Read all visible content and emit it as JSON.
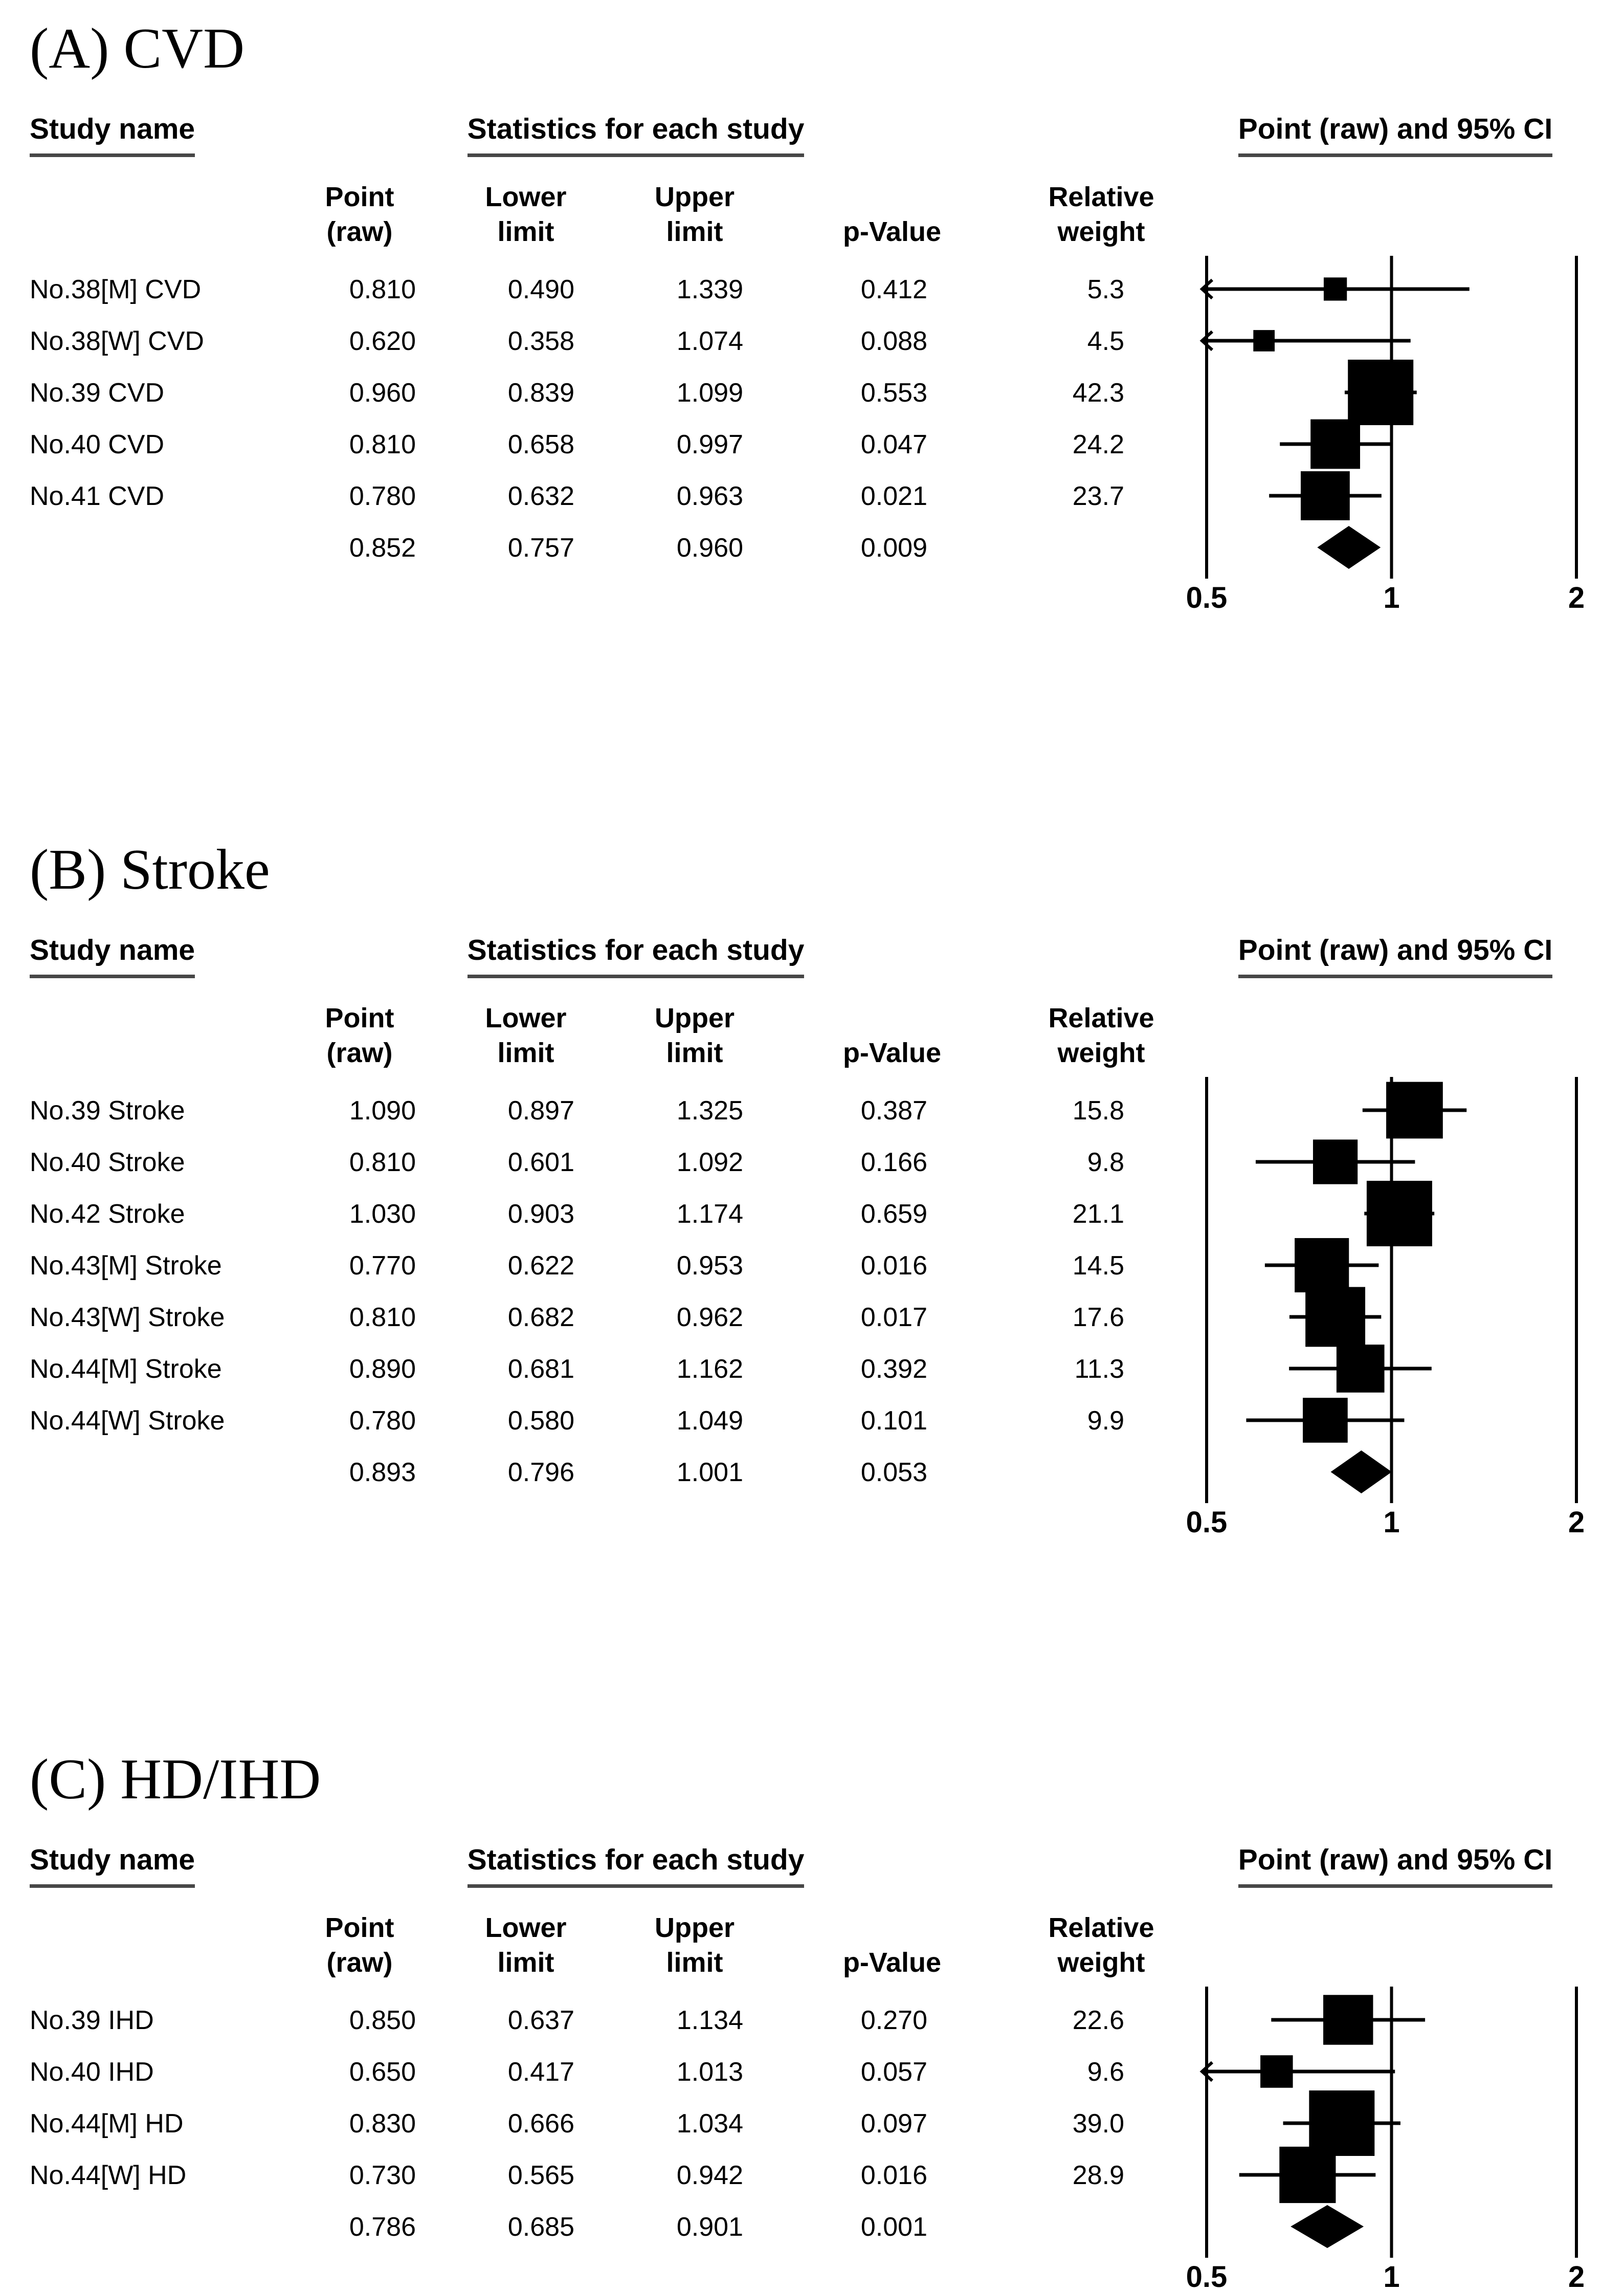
{
  "table_headers": {
    "study": "Study name",
    "statistics": "Statistics for each study",
    "plot": "Point (raw) and 95% CI"
  },
  "columns": {
    "point": [
      "Point",
      "(raw)"
    ],
    "lower": [
      "Lower",
      "limit"
    ],
    "upper": [
      "Upper",
      "limit"
    ],
    "p": [
      "p-Value"
    ],
    "weight": [
      "Relative",
      "weight"
    ]
  },
  "chart_data": [
    {
      "type": "scatter",
      "subtype": "forest-plot",
      "section_label": "(A) CVD",
      "plot_title": "Point (raw) and 95% CI",
      "x_scale": "log",
      "x_range": [
        0.5,
        2
      ],
      "x_ticks": [
        0.5,
        1,
        2
      ],
      "studies": [
        {
          "name": "No.38[M] CVD",
          "point": 0.81,
          "lower": 0.49,
          "upper": 1.339,
          "p_value": 0.412,
          "weight": 5.3
        },
        {
          "name": "No.38[W] CVD",
          "point": 0.62,
          "lower": 0.358,
          "upper": 1.074,
          "p_value": 0.088,
          "weight": 4.5
        },
        {
          "name": "No.39 CVD",
          "point": 0.96,
          "lower": 0.839,
          "upper": 1.099,
          "p_value": 0.553,
          "weight": 42.3
        },
        {
          "name": "No.40 CVD",
          "point": 0.81,
          "lower": 0.658,
          "upper": 0.997,
          "p_value": 0.047,
          "weight": 24.2
        },
        {
          "name": "No.41 CVD",
          "point": 0.78,
          "lower": 0.632,
          "upper": 0.963,
          "p_value": 0.021,
          "weight": 23.7
        }
      ],
      "summary": {
        "point": 0.852,
        "lower": 0.757,
        "upper": 0.96,
        "p_value": 0.009
      }
    },
    {
      "type": "scatter",
      "subtype": "forest-plot",
      "section_label": "(B) Stroke",
      "plot_title": "Point (raw) and 95% CI",
      "x_scale": "log",
      "x_range": [
        0.5,
        2
      ],
      "x_ticks": [
        0.5,
        1,
        2
      ],
      "studies": [
        {
          "name": "No.39 Stroke",
          "point": 1.09,
          "lower": 0.897,
          "upper": 1.325,
          "p_value": 0.387,
          "weight": 15.8
        },
        {
          "name": "No.40 Stroke",
          "point": 0.81,
          "lower": 0.601,
          "upper": 1.092,
          "p_value": 0.166,
          "weight": 9.8
        },
        {
          "name": "No.42 Stroke",
          "point": 1.03,
          "lower": 0.903,
          "upper": 1.174,
          "p_value": 0.659,
          "weight": 21.1
        },
        {
          "name": "No.43[M] Stroke",
          "point": 0.77,
          "lower": 0.622,
          "upper": 0.953,
          "p_value": 0.016,
          "weight": 14.5
        },
        {
          "name": "No.43[W] Stroke",
          "point": 0.81,
          "lower": 0.682,
          "upper": 0.962,
          "p_value": 0.017,
          "weight": 17.6
        },
        {
          "name": "No.44[M] Stroke",
          "point": 0.89,
          "lower": 0.681,
          "upper": 1.162,
          "p_value": 0.392,
          "weight": 11.3
        },
        {
          "name": "No.44[W] Stroke",
          "point": 0.78,
          "lower": 0.58,
          "upper": 1.049,
          "p_value": 0.101,
          "weight": 9.9
        }
      ],
      "summary": {
        "point": 0.893,
        "lower": 0.796,
        "upper": 1.001,
        "p_value": 0.053
      }
    },
    {
      "type": "scatter",
      "subtype": "forest-plot",
      "section_label": "(C) HD/IHD",
      "plot_title": "Point (raw) and 95% CI",
      "x_scale": "log",
      "x_range": [
        0.5,
        2
      ],
      "x_ticks": [
        0.5,
        1,
        2
      ],
      "studies": [
        {
          "name": "No.39 IHD",
          "point": 0.85,
          "lower": 0.637,
          "upper": 1.134,
          "p_value": 0.27,
          "weight": 22.6
        },
        {
          "name": "No.40 IHD",
          "point": 0.65,
          "lower": 0.417,
          "upper": 1.013,
          "p_value": 0.057,
          "weight": 9.6
        },
        {
          "name": "No.44[M] HD",
          "point": 0.83,
          "lower": 0.666,
          "upper": 1.034,
          "p_value": 0.097,
          "weight": 39.0
        },
        {
          "name": "No.44[W] HD",
          "point": 0.73,
          "lower": 0.565,
          "upper": 0.942,
          "p_value": 0.016,
          "weight": 28.9
        }
      ],
      "summary": {
        "point": 0.786,
        "lower": 0.685,
        "upper": 0.901,
        "p_value": 0.001
      }
    }
  ]
}
